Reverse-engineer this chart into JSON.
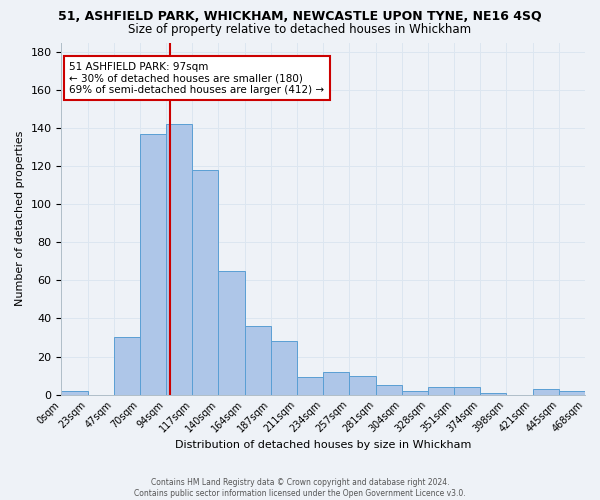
{
  "title": "51, ASHFIELD PARK, WHICKHAM, NEWCASTLE UPON TYNE, NE16 4SQ",
  "subtitle": "Size of property relative to detached houses in Whickham",
  "xlabel": "Distribution of detached houses by size in Whickham",
  "ylabel": "Number of detached properties",
  "bin_labels": [
    "0sqm",
    "23sqm",
    "47sqm",
    "70sqm",
    "94sqm",
    "117sqm",
    "140sqm",
    "164sqm",
    "187sqm",
    "211sqm",
    "234sqm",
    "257sqm",
    "281sqm",
    "304sqm",
    "328sqm",
    "351sqm",
    "374sqm",
    "398sqm",
    "421sqm",
    "445sqm",
    "468sqm"
  ],
  "bar_heights": [
    2,
    0,
    30,
    137,
    142,
    118,
    65,
    36,
    28,
    9,
    12,
    10,
    5,
    2,
    4,
    4,
    1,
    0,
    3,
    2
  ],
  "bar_color": "#aec6e8",
  "bar_edge_color": "#5a9fd4",
  "grid_color": "#dce6f0",
  "background_color": "#eef2f7",
  "property_line_bin": 4,
  "property_line_color": "#cc0000",
  "annotation_text": "51 ASHFIELD PARK: 97sqm\n← 30% of detached houses are smaller (180)\n69% of semi-detached houses are larger (412) →",
  "annotation_box_color": "#ffffff",
  "annotation_box_edge_color": "#cc0000",
  "ylim": [
    0,
    185
  ],
  "yticks": [
    0,
    20,
    40,
    60,
    80,
    100,
    120,
    140,
    160,
    180
  ],
  "footer_line1": "Contains HM Land Registry data © Crown copyright and database right 2024.",
  "footer_line2": "Contains public sector information licensed under the Open Government Licence v3.0."
}
